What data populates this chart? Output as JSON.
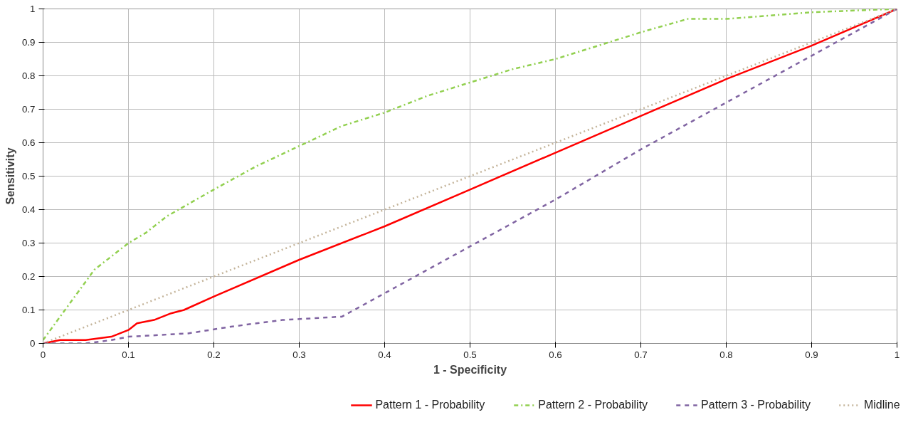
{
  "chart_data": {
    "type": "line",
    "xlabel": "1 - Specificity",
    "ylabel": "Sensitivity",
    "xlim": [
      0,
      1
    ],
    "ylim": [
      0,
      1
    ],
    "xticks": [
      0,
      0.1,
      0.2,
      0.3,
      0.4,
      0.5,
      0.6,
      0.7,
      0.8,
      0.9,
      1
    ],
    "yticks": [
      0,
      0.1,
      0.2,
      0.3,
      0.4,
      0.5,
      0.6,
      0.7,
      0.8,
      0.9,
      1
    ],
    "grid": true,
    "legend": "bottom",
    "marker": "none",
    "series": [
      {
        "name": "Pattern 1 - Probability",
        "color": "#ff0000",
        "line_style": "solid",
        "x": [
          0,
          0.02,
          0.05,
          0.08,
          0.1,
          0.11,
          0.13,
          0.14,
          0.15,
          0.165,
          0.2,
          0.3,
          0.4,
          0.5,
          0.6,
          0.7,
          0.8,
          0.9,
          1
        ],
        "values": [
          0,
          0.01,
          0.01,
          0.02,
          0.04,
          0.06,
          0.07,
          0.08,
          0.09,
          0.1,
          0.14,
          0.25,
          0.35,
          0.46,
          0.57,
          0.68,
          0.79,
          0.89,
          1
        ]
      },
      {
        "name": "Pattern 2 - Probability",
        "color": "#92d050",
        "line_style": "dashdot",
        "x": [
          0,
          0.02,
          0.04,
          0.06,
          0.08,
          0.1,
          0.12,
          0.145,
          0.2,
          0.25,
          0.3,
          0.35,
          0.4,
          0.45,
          0.5,
          0.55,
          0.6,
          0.65,
          0.7,
          0.755,
          0.8,
          0.9,
          1
        ],
        "values": [
          0.01,
          0.08,
          0.15,
          0.22,
          0.26,
          0.3,
          0.33,
          0.38,
          0.46,
          0.53,
          0.59,
          0.65,
          0.69,
          0.74,
          0.78,
          0.82,
          0.85,
          0.89,
          0.93,
          0.97,
          0.97,
          0.99,
          1
        ]
      },
      {
        "name": "Pattern 3 - Probability",
        "color": "#8064a2",
        "line_style": "dashed",
        "x": [
          0,
          0.05,
          0.08,
          0.1,
          0.17,
          0.22,
          0.28,
          0.35,
          0.4,
          0.5,
          0.6,
          0.7,
          0.8,
          0.9,
          1
        ],
        "values": [
          0,
          0,
          0.01,
          0.02,
          0.03,
          0.05,
          0.07,
          0.08,
          0.15,
          0.29,
          0.43,
          0.58,
          0.72,
          0.86,
          1
        ]
      },
      {
        "name": "Midline",
        "color": "#c4b49a",
        "line_style": "dotted",
        "x": [
          0,
          1
        ],
        "values": [
          0,
          1
        ]
      }
    ]
  }
}
